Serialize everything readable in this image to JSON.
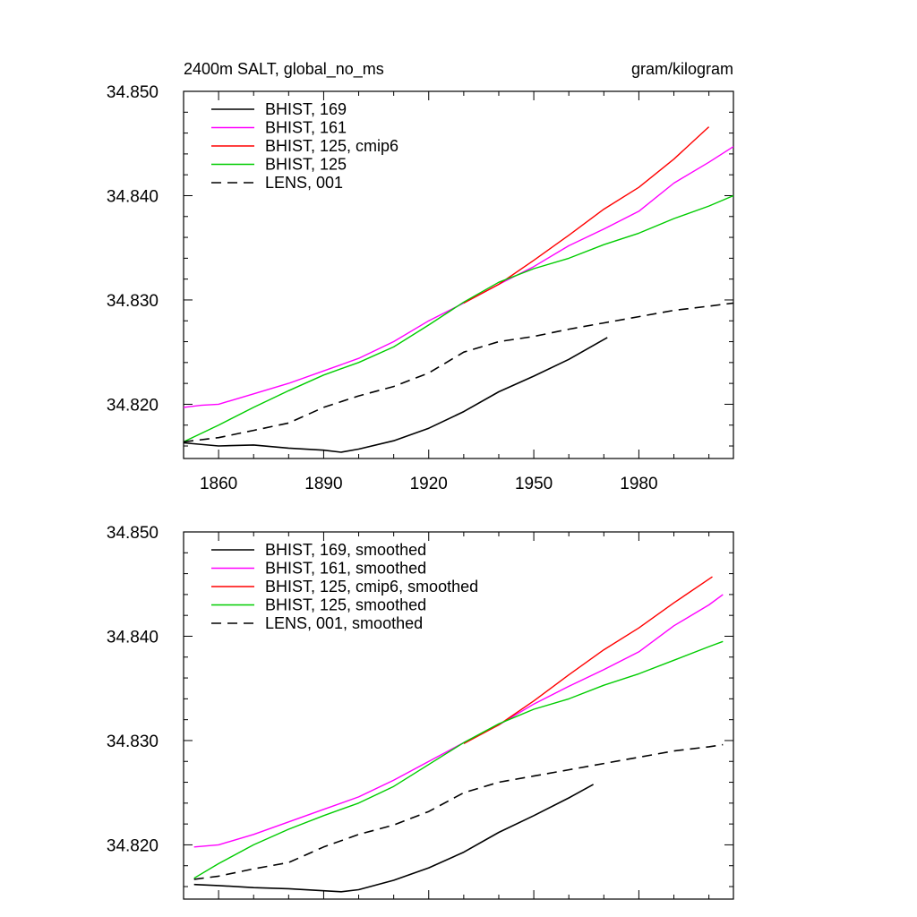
{
  "chart_data": [
    {
      "type": "line",
      "title": "2400m SALT, global_no_ms",
      "units": "gram/kilogram",
      "xlim": [
        1850,
        2007
      ],
      "ylim": [
        34.8148,
        34.85
      ],
      "x_ticks": [
        1860,
        1890,
        1920,
        1950,
        1980
      ],
      "y_ticks": [
        34.82,
        34.83,
        34.84,
        34.85
      ],
      "y_tick_labels": [
        "34.820",
        "34.830",
        "34.840",
        "34.850"
      ],
      "legend_position": "top-left",
      "series": [
        {
          "name": "BHIST, 169",
          "color": "#000000",
          "dash": "solid",
          "points": [
            [
              1850,
              34.8163
            ],
            [
              1860,
              34.816
            ],
            [
              1870,
              34.8161
            ],
            [
              1880,
              34.8158
            ],
            [
              1890,
              34.8156
            ],
            [
              1895,
              34.8154
            ],
            [
              1900,
              34.8157
            ],
            [
              1910,
              34.8165
            ],
            [
              1920,
              34.8177
            ],
            [
              1930,
              34.8193
            ],
            [
              1940,
              34.8212
            ],
            [
              1950,
              34.8227
            ],
            [
              1960,
              34.8243
            ],
            [
              1971,
              34.8264
            ]
          ]
        },
        {
          "name": "BHIST, 161",
          "color": "#ff00ff",
          "dash": "solid",
          "points": [
            [
              1850,
              34.8197
            ],
            [
              1855,
              34.8199
            ],
            [
              1860,
              34.82
            ],
            [
              1870,
              34.821
            ],
            [
              1880,
              34.822
            ],
            [
              1890,
              34.8232
            ],
            [
              1900,
              34.8244
            ],
            [
              1910,
              34.826
            ],
            [
              1920,
              34.828
            ],
            [
              1930,
              34.8297
            ],
            [
              1940,
              34.8315
            ],
            [
              1950,
              34.8332
            ],
            [
              1960,
              34.8352
            ],
            [
              1970,
              34.8368
            ],
            [
              1980,
              34.8385
            ],
            [
              1990,
              34.8412
            ],
            [
              2000,
              34.8432
            ],
            [
              2007,
              34.8447
            ]
          ]
        },
        {
          "name": "BHIST, 125, cmip6",
          "color": "#ff0000",
          "dash": "solid",
          "points": [
            [
              1930,
              34.8297
            ],
            [
              1940,
              34.8315
            ],
            [
              1950,
              34.8338
            ],
            [
              1960,
              34.8362
            ],
            [
              1970,
              34.8387
            ],
            [
              1980,
              34.8408
            ],
            [
              1990,
              34.8435
            ],
            [
              2000,
              34.8466
            ]
          ]
        },
        {
          "name": "BHIST, 125",
          "color": "#00cc00",
          "dash": "solid",
          "points": [
            [
              1850,
              34.8164
            ],
            [
              1860,
              34.818
            ],
            [
              1870,
              34.8197
            ],
            [
              1880,
              34.8213
            ],
            [
              1890,
              34.8228
            ],
            [
              1900,
              34.824
            ],
            [
              1910,
              34.8255
            ],
            [
              1920,
              34.8276
            ],
            [
              1930,
              34.8298
            ],
            [
              1940,
              34.8317
            ],
            [
              1950,
              34.833
            ],
            [
              1960,
              34.834
            ],
            [
              1970,
              34.8353
            ],
            [
              1980,
              34.8364
            ],
            [
              1990,
              34.8378
            ],
            [
              2000,
              34.839
            ],
            [
              2007,
              34.84
            ]
          ]
        },
        {
          "name": "LENS, 001",
          "color": "#000000",
          "dash": "dashed",
          "points": [
            [
              1850,
              34.8164
            ],
            [
              1860,
              34.8168
            ],
            [
              1870,
              34.8175
            ],
            [
              1880,
              34.8182
            ],
            [
              1890,
              34.8197
            ],
            [
              1900,
              34.8208
            ],
            [
              1910,
              34.8217
            ],
            [
              1920,
              34.823
            ],
            [
              1930,
              34.825
            ],
            [
              1940,
              34.826
            ],
            [
              1950,
              34.8265
            ],
            [
              1960,
              34.8272
            ],
            [
              1970,
              34.8278
            ],
            [
              1980,
              34.8284
            ],
            [
              1990,
              34.829
            ],
            [
              2000,
              34.8294
            ],
            [
              2007,
              34.8297
            ]
          ]
        }
      ]
    },
    {
      "type": "line",
      "xlim": [
        1850,
        2007
      ],
      "ylim": [
        34.8148,
        34.85
      ],
      "y_ticks": [
        34.82,
        34.83,
        34.84,
        34.85
      ],
      "y_tick_labels": [
        "34.820",
        "34.830",
        "34.840",
        "34.850"
      ],
      "legend_position": "top-left",
      "series": [
        {
          "name": "BHIST, 169, smoothed",
          "color": "#000000",
          "dash": "solid",
          "points": [
            [
              1853,
              34.8162
            ],
            [
              1860,
              34.8161
            ],
            [
              1870,
              34.8159
            ],
            [
              1880,
              34.8158
            ],
            [
              1890,
              34.8156
            ],
            [
              1895,
              34.8155
            ],
            [
              1900,
              34.8157
            ],
            [
              1910,
              34.8166
            ],
            [
              1920,
              34.8178
            ],
            [
              1930,
              34.8193
            ],
            [
              1940,
              34.8212
            ],
            [
              1950,
              34.8228
            ],
            [
              1960,
              34.8245
            ],
            [
              1967,
              34.8258
            ]
          ]
        },
        {
          "name": "BHIST, 161, smoothed",
          "color": "#ff00ff",
          "dash": "solid",
          "points": [
            [
              1853,
              34.8198
            ],
            [
              1860,
              34.82
            ],
            [
              1870,
              34.821
            ],
            [
              1880,
              34.8222
            ],
            [
              1890,
              34.8234
            ],
            [
              1900,
              34.8246
            ],
            [
              1910,
              34.8262
            ],
            [
              1920,
              34.828
            ],
            [
              1930,
              34.8298
            ],
            [
              1940,
              34.8315
            ],
            [
              1950,
              34.8335
            ],
            [
              1960,
              34.8352
            ],
            [
              1970,
              34.8368
            ],
            [
              1980,
              34.8385
            ],
            [
              1990,
              34.841
            ],
            [
              2000,
              34.843
            ],
            [
              2004,
              34.844
            ]
          ]
        },
        {
          "name": "BHIST, 125, cmip6, smoothed",
          "color": "#ff0000",
          "dash": "solid",
          "points": [
            [
              1930,
              34.8297
            ],
            [
              1940,
              34.8315
            ],
            [
              1950,
              34.8338
            ],
            [
              1960,
              34.8363
            ],
            [
              1970,
              34.8387
            ],
            [
              1980,
              34.8408
            ],
            [
              1990,
              34.8432
            ],
            [
              2001,
              34.8457
            ]
          ]
        },
        {
          "name": "BHIST, 125, smoothed",
          "color": "#00cc00",
          "dash": "solid",
          "points": [
            [
              1853,
              34.8168
            ],
            [
              1860,
              34.8182
            ],
            [
              1870,
              34.82
            ],
            [
              1880,
              34.8215
            ],
            [
              1890,
              34.8228
            ],
            [
              1900,
              34.824
            ],
            [
              1910,
              34.8256
            ],
            [
              1920,
              34.8277
            ],
            [
              1930,
              34.8298
            ],
            [
              1940,
              34.8316
            ],
            [
              1950,
              34.833
            ],
            [
              1960,
              34.834
            ],
            [
              1970,
              34.8353
            ],
            [
              1980,
              34.8364
            ],
            [
              1990,
              34.8377
            ],
            [
              2000,
              34.839
            ],
            [
              2004,
              34.8395
            ]
          ]
        },
        {
          "name": "LENS, 001, smoothed",
          "color": "#000000",
          "dash": "dashed",
          "points": [
            [
              1853,
              34.8167
            ],
            [
              1860,
              34.817
            ],
            [
              1870,
              34.8177
            ],
            [
              1880,
              34.8183
            ],
            [
              1890,
              34.8198
            ],
            [
              1900,
              34.821
            ],
            [
              1910,
              34.8219
            ],
            [
              1920,
              34.8232
            ],
            [
              1930,
              34.825
            ],
            [
              1940,
              34.826
            ],
            [
              1950,
              34.8266
            ],
            [
              1960,
              34.8272
            ],
            [
              1970,
              34.8278
            ],
            [
              1980,
              34.8284
            ],
            [
              1990,
              34.829
            ],
            [
              2000,
              34.8294
            ],
            [
              2004,
              34.8296
            ]
          ]
        }
      ]
    }
  ]
}
